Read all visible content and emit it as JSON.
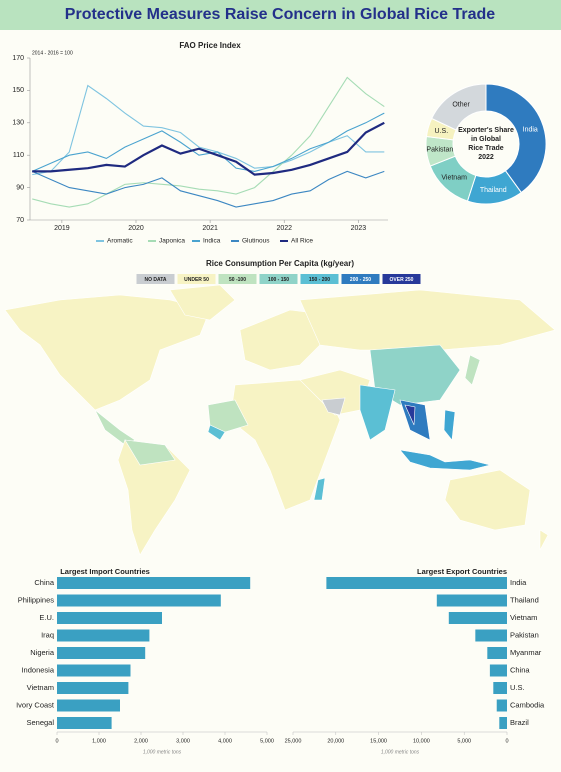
{
  "header": {
    "title": "Protective Measures Raise Concern in Global Rice Trade"
  },
  "chart_data": [
    {
      "type": "line",
      "title": "FAO Price Index",
      "subtitle": "2014 - 2016 = 100",
      "x": [
        2018.6,
        2018.85,
        2019.1,
        2019.35,
        2019.6,
        2019.85,
        2020.1,
        2020.35,
        2020.6,
        2020.85,
        2021.1,
        2021.35,
        2021.6,
        2021.85,
        2022.1,
        2022.35,
        2022.6,
        2022.85,
        2023.1,
        2023.35
      ],
      "xlim": [
        2018.57,
        2023.4
      ],
      "xticks": [
        2019,
        2020,
        2021,
        2022,
        2023
      ],
      "ylim": [
        70,
        170
      ],
      "yticks": [
        70,
        90,
        110,
        130,
        150,
        170
      ],
      "series": [
        {
          "name": "Aromatic",
          "color": "#7fc4e0",
          "values": [
            98,
            100,
            112,
            153,
            145,
            136,
            128,
            127,
            124,
            115,
            112,
            108,
            102,
            103,
            107,
            112,
            118,
            122,
            112,
            112
          ]
        },
        {
          "name": "Japonica",
          "color": "#a6dcb5",
          "values": [
            83,
            80,
            78,
            80,
            86,
            92,
            93,
            92,
            91,
            89,
            88,
            86,
            90,
            100,
            110,
            122,
            140,
            158,
            148,
            140
          ]
        },
        {
          "name": "Indica",
          "color": "#4aa3cf",
          "values": [
            100,
            105,
            110,
            112,
            108,
            115,
            120,
            125,
            118,
            110,
            112,
            102,
            100,
            103,
            108,
            114,
            118,
            125,
            130,
            136
          ]
        },
        {
          "name": "Glutinous",
          "color": "#3c87c2",
          "values": [
            100,
            95,
            90,
            88,
            86,
            90,
            92,
            96,
            88,
            85,
            82,
            78,
            80,
            82,
            86,
            88,
            95,
            100,
            96,
            100
          ]
        },
        {
          "name": "All Rice",
          "color": "#1f2a80",
          "values": [
            100,
            100,
            101,
            102,
            104,
            103,
            110,
            116,
            111,
            114,
            110,
            106,
            98,
            99,
            101,
            104,
            108,
            112,
            124,
            130
          ]
        }
      ]
    },
    {
      "type": "donut",
      "title": "Exporter's Share in Global Rice Trade 2022",
      "categories": [
        "India",
        "Thailand",
        "Vietnam",
        "Pakistan",
        "U.S.",
        "Other"
      ],
      "values": [
        40,
        15,
        14,
        8,
        5,
        18
      ],
      "colors": [
        "#2f7bbf",
        "#3fa6d2",
        "#7fcfc5",
        "#bfe6c8",
        "#f6f2c0",
        "#d3d8dc"
      ]
    },
    {
      "type": "map",
      "title": "Rice Consumption Per Capita (kg/year)",
      "legend": [
        {
          "label": "NO DATA",
          "color": "#c9cdd1"
        },
        {
          "label": "UNDER 50",
          "color": "#f7f3c4"
        },
        {
          "label": "50 -100",
          "color": "#bfe3c0"
        },
        {
          "label": "100 - 150",
          "color": "#8fd3c8"
        },
        {
          "label": "150 - 200",
          "color": "#5bbfd4"
        },
        {
          "label": "200 - 250",
          "color": "#2f7bbf"
        },
        {
          "label": "OVER 250",
          "color": "#27399a"
        }
      ]
    },
    {
      "type": "hbar",
      "title": "Largest Import Countries",
      "color": "#3aa0c2",
      "categories": [
        "China",
        "Philippines",
        "E.U.",
        "Iraq",
        "Nigeria",
        "Indonesia",
        "Vietnam",
        "Ivory Coast",
        "Senegal"
      ],
      "values": [
        4600,
        3900,
        2500,
        2200,
        2100,
        1750,
        1700,
        1500,
        1300
      ],
      "xlim": [
        0,
        5000
      ],
      "xticks": [
        0,
        {
          "value": 1000,
          "label": "1,000"
        },
        {
          "value": 2000,
          "label": "2,000"
        },
        {
          "value": 3000,
          "label": "3,000"
        },
        {
          "value": 4000,
          "label": "4,000"
        },
        {
          "value": 5000,
          "label": "5,000"
        }
      ],
      "xlabel": "1,000 metric tons"
    },
    {
      "type": "hbar",
      "title": "Largest Export Countries",
      "color": "#3aa0c2",
      "reversed": true,
      "categories": [
        "India",
        "Thailand",
        "Vietnam",
        "Pakistan",
        "Myanmar",
        "China",
        "U.S.",
        "Cambodia",
        "Brazil"
      ],
      "values": [
        21100,
        8200,
        6800,
        3700,
        2300,
        2000,
        1600,
        1200,
        900
      ],
      "xlim": [
        0,
        25000
      ],
      "xticks": [
        0,
        {
          "value": 5000,
          "label": "5,000"
        },
        {
          "value": 10000,
          "label": "10,000"
        },
        {
          "value": 15000,
          "label": "15,000"
        },
        {
          "value": 20000,
          "label": "20,000"
        },
        {
          "value": 25000,
          "label": "25,000"
        }
      ],
      "xlabel": "1,000 metric tons"
    }
  ]
}
